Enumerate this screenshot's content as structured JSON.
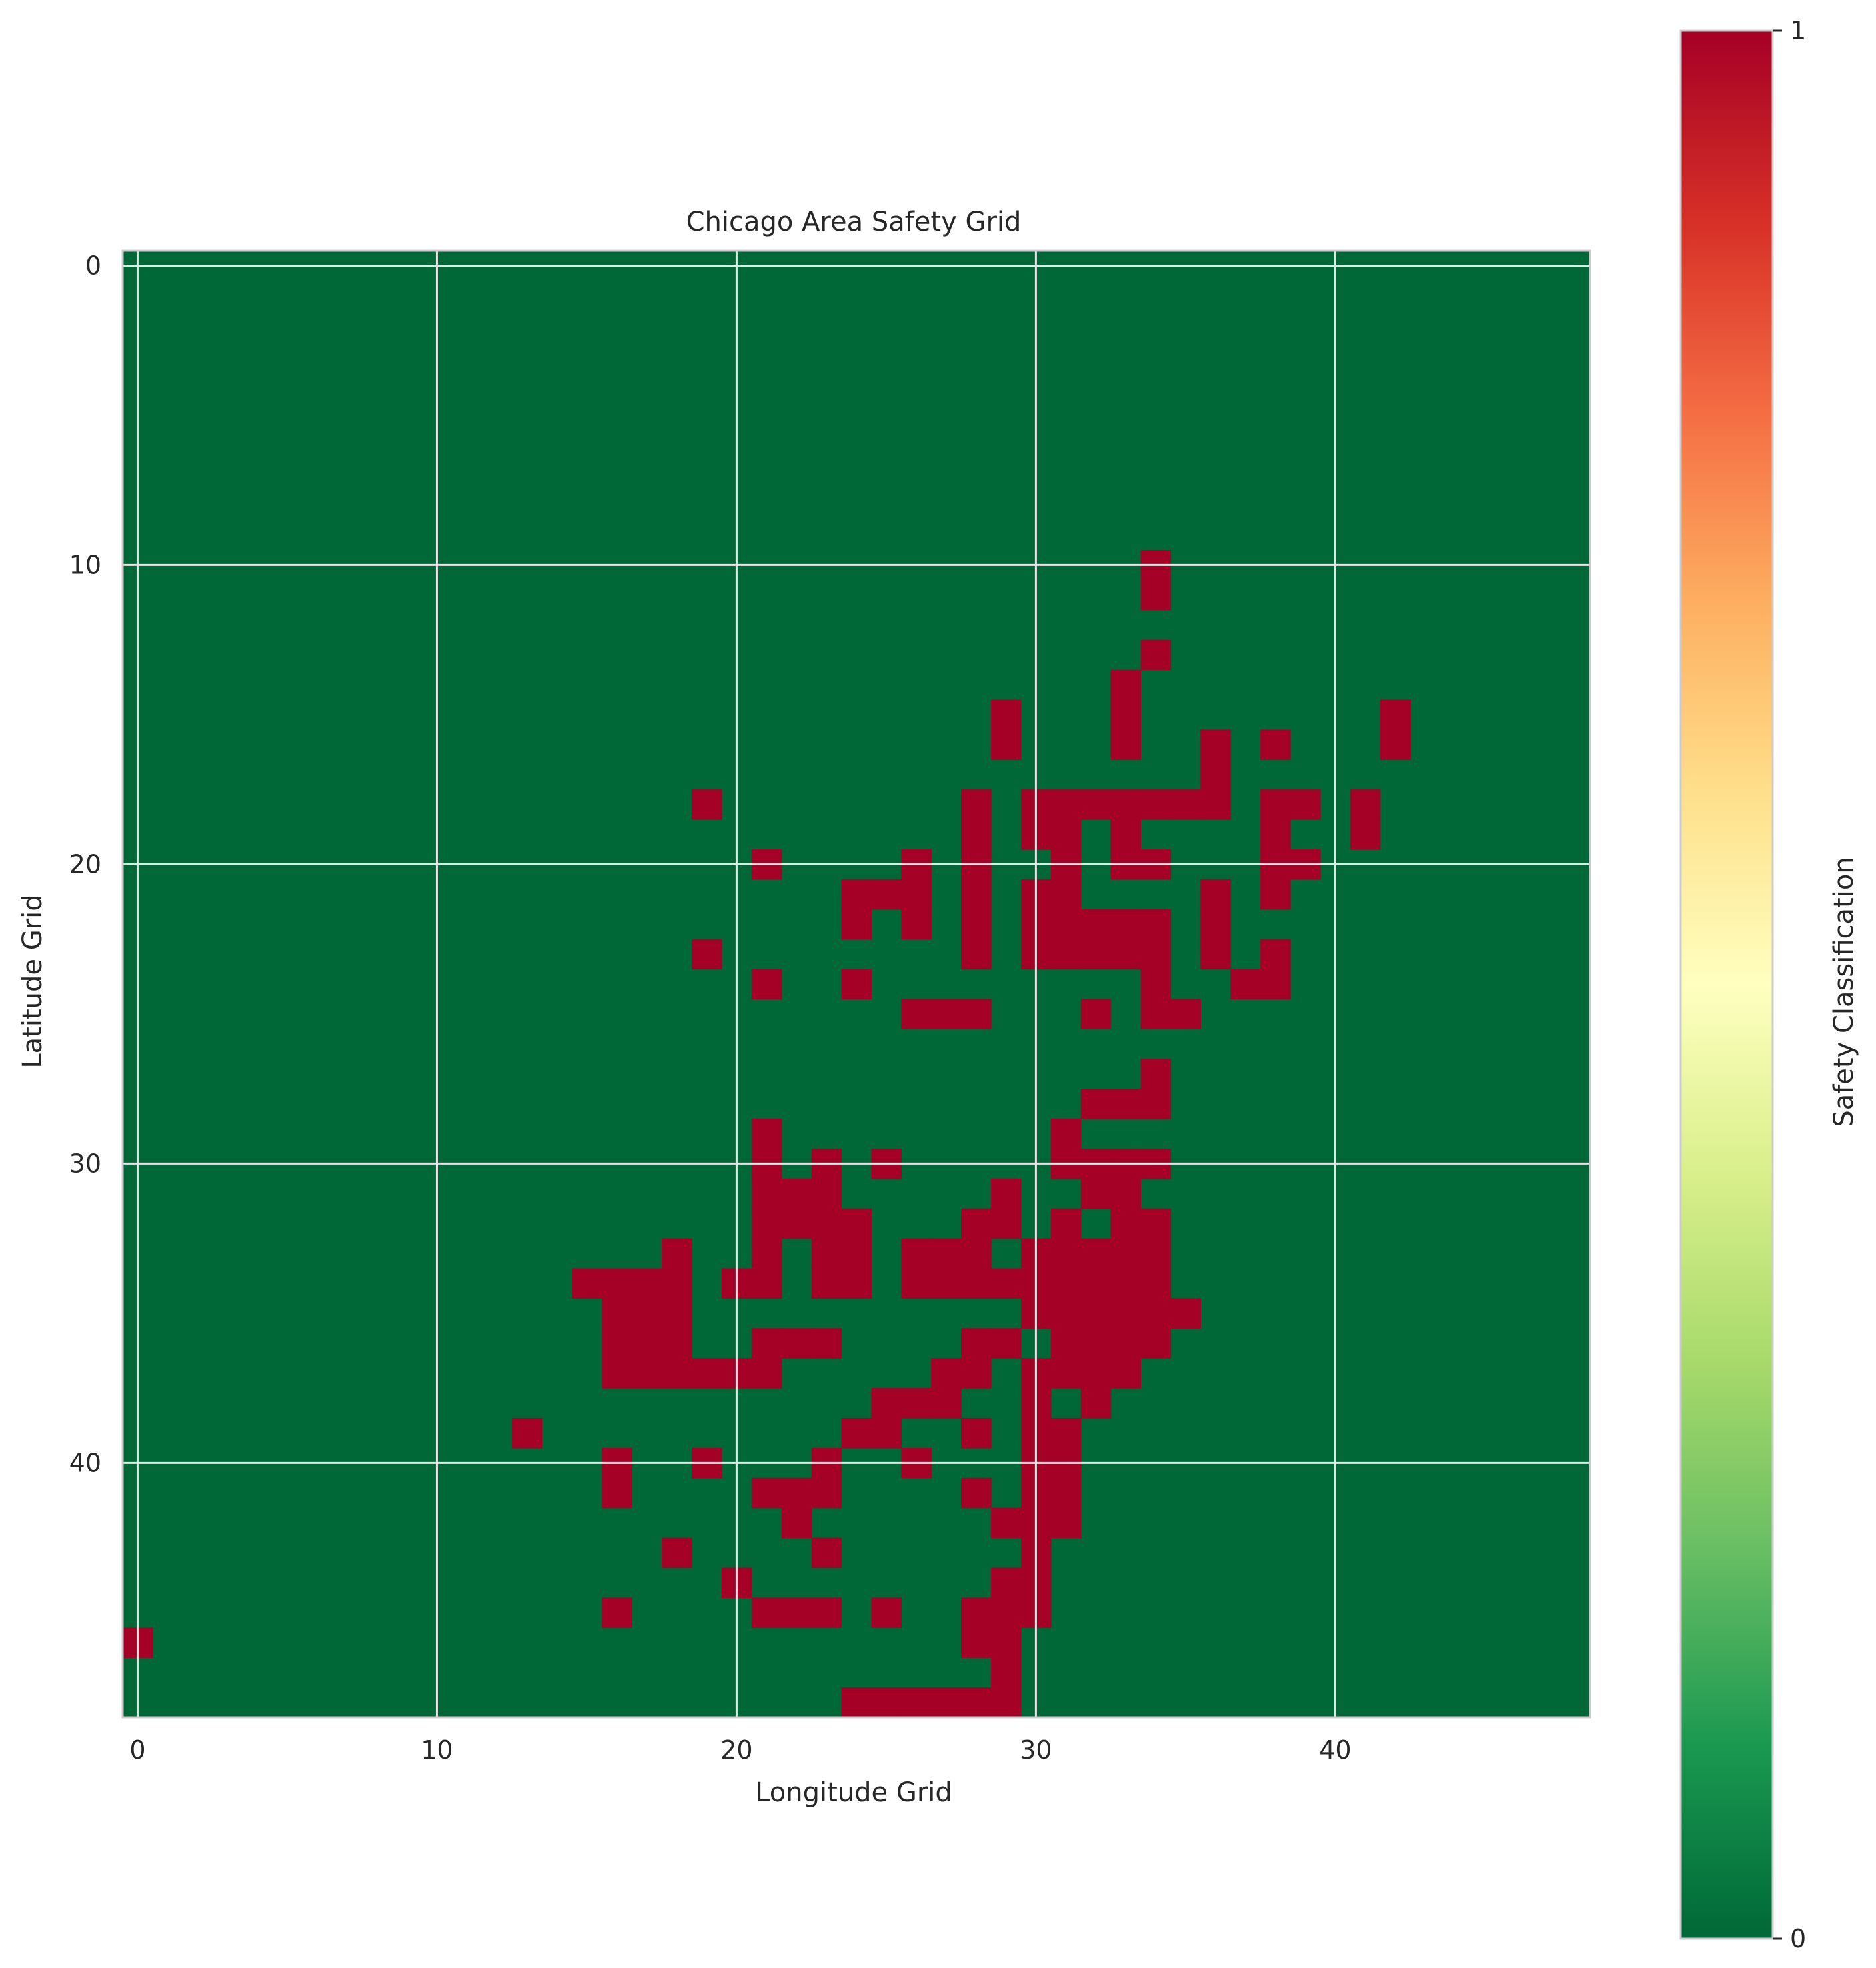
{
  "chart_data": {
    "type": "heatmap",
    "title": "Chicago Area Safety Grid",
    "xlabel": "Longitude Grid",
    "ylabel": "Latitude Grid",
    "grid": true,
    "xlim": [
      -0.5,
      48.5
    ],
    "ylim": [
      48.5,
      -0.5
    ],
    "rows": 49,
    "cols": 49,
    "xticks": [
      0,
      10,
      20,
      30,
      40
    ],
    "yticks": [
      0,
      10,
      20,
      30,
      40
    ],
    "colorbar": {
      "label": "Safety Classification",
      "ticks": [
        0,
        1
      ],
      "range": [
        0,
        1
      ],
      "colormap": "RdYlGn_r",
      "stops": [
        "#006837",
        "#1a9850",
        "#66bd63",
        "#a6d96a",
        "#d9ef8b",
        "#ffffbf",
        "#fee08b",
        "#fdae61",
        "#f46d43",
        "#d73027",
        "#a50026"
      ]
    },
    "colors": {
      "safe": "#006837",
      "unsafe": "#a50026"
    },
    "value_zero_default": 0,
    "cells_value_1": [
      [
        10,
        34
      ],
      [
        11,
        34
      ],
      [
        13,
        34
      ],
      [
        14,
        33
      ],
      [
        15,
        29
      ],
      [
        15,
        33
      ],
      [
        15,
        42
      ],
      [
        16,
        29
      ],
      [
        16,
        33
      ],
      [
        16,
        36
      ],
      [
        16,
        38
      ],
      [
        16,
        42
      ],
      [
        17,
        36
      ],
      [
        18,
        19
      ],
      [
        18,
        28
      ],
      [
        18,
        30
      ],
      [
        18,
        31
      ],
      [
        18,
        32
      ],
      [
        18,
        33
      ],
      [
        18,
        34
      ],
      [
        18,
        35
      ],
      [
        18,
        36
      ],
      [
        18,
        38
      ],
      [
        18,
        39
      ],
      [
        18,
        41
      ],
      [
        19,
        28
      ],
      [
        19,
        30
      ],
      [
        19,
        31
      ],
      [
        19,
        33
      ],
      [
        19,
        38
      ],
      [
        19,
        41
      ],
      [
        20,
        21
      ],
      [
        20,
        26
      ],
      [
        20,
        28
      ],
      [
        20,
        31
      ],
      [
        20,
        33
      ],
      [
        20,
        34
      ],
      [
        20,
        38
      ],
      [
        20,
        39
      ],
      [
        21,
        24
      ],
      [
        21,
        25
      ],
      [
        21,
        26
      ],
      [
        21,
        28
      ],
      [
        21,
        30
      ],
      [
        21,
        31
      ],
      [
        21,
        36
      ],
      [
        21,
        38
      ],
      [
        22,
        24
      ],
      [
        22,
        26
      ],
      [
        22,
        28
      ],
      [
        22,
        30
      ],
      [
        22,
        31
      ],
      [
        22,
        32
      ],
      [
        22,
        33
      ],
      [
        22,
        34
      ],
      [
        22,
        36
      ],
      [
        23,
        19
      ],
      [
        23,
        28
      ],
      [
        23,
        30
      ],
      [
        23,
        31
      ],
      [
        23,
        32
      ],
      [
        23,
        33
      ],
      [
        23,
        34
      ],
      [
        23,
        36
      ],
      [
        23,
        38
      ],
      [
        24,
        21
      ],
      [
        24,
        24
      ],
      [
        24,
        34
      ],
      [
        24,
        37
      ],
      [
        24,
        38
      ],
      [
        25,
        26
      ],
      [
        25,
        27
      ],
      [
        25,
        28
      ],
      [
        25,
        32
      ],
      [
        25,
        34
      ],
      [
        25,
        35
      ],
      [
        27,
        34
      ],
      [
        28,
        32
      ],
      [
        28,
        33
      ],
      [
        28,
        34
      ],
      [
        29,
        21
      ],
      [
        29,
        31
      ],
      [
        30,
        21
      ],
      [
        30,
        23
      ],
      [
        30,
        25
      ],
      [
        30,
        31
      ],
      [
        30,
        32
      ],
      [
        30,
        33
      ],
      [
        30,
        34
      ],
      [
        31,
        21
      ],
      [
        31,
        22
      ],
      [
        31,
        23
      ],
      [
        31,
        29
      ],
      [
        31,
        32
      ],
      [
        31,
        33
      ],
      [
        32,
        21
      ],
      [
        32,
        22
      ],
      [
        32,
        23
      ],
      [
        32,
        24
      ],
      [
        32,
        28
      ],
      [
        32,
        29
      ],
      [
        32,
        31
      ],
      [
        32,
        33
      ],
      [
        32,
        34
      ],
      [
        33,
        18
      ],
      [
        33,
        21
      ],
      [
        33,
        23
      ],
      [
        33,
        24
      ],
      [
        33,
        26
      ],
      [
        33,
        27
      ],
      [
        33,
        28
      ],
      [
        33,
        30
      ],
      [
        33,
        31
      ],
      [
        33,
        32
      ],
      [
        33,
        33
      ],
      [
        33,
        34
      ],
      [
        34,
        15
      ],
      [
        34,
        16
      ],
      [
        34,
        17
      ],
      [
        34,
        18
      ],
      [
        34,
        20
      ],
      [
        34,
        21
      ],
      [
        34,
        23
      ],
      [
        34,
        24
      ],
      [
        34,
        26
      ],
      [
        34,
        27
      ],
      [
        34,
        28
      ],
      [
        34,
        29
      ],
      [
        34,
        30
      ],
      [
        34,
        31
      ],
      [
        34,
        32
      ],
      [
        34,
        33
      ],
      [
        34,
        34
      ],
      [
        35,
        16
      ],
      [
        35,
        17
      ],
      [
        35,
        18
      ],
      [
        35,
        30
      ],
      [
        35,
        31
      ],
      [
        35,
        32
      ],
      [
        35,
        33
      ],
      [
        35,
        34
      ],
      [
        35,
        35
      ],
      [
        36,
        16
      ],
      [
        36,
        17
      ],
      [
        36,
        18
      ],
      [
        36,
        21
      ],
      [
        36,
        22
      ],
      [
        36,
        23
      ],
      [
        36,
        28
      ],
      [
        36,
        29
      ],
      [
        36,
        31
      ],
      [
        36,
        32
      ],
      [
        36,
        33
      ],
      [
        36,
        34
      ],
      [
        37,
        16
      ],
      [
        37,
        17
      ],
      [
        37,
        18
      ],
      [
        37,
        19
      ],
      [
        37,
        20
      ],
      [
        37,
        21
      ],
      [
        37,
        27
      ],
      [
        37,
        28
      ],
      [
        37,
        30
      ],
      [
        37,
        31
      ],
      [
        37,
        32
      ],
      [
        37,
        33
      ],
      [
        38,
        25
      ],
      [
        38,
        26
      ],
      [
        38,
        27
      ],
      [
        38,
        30
      ],
      [
        38,
        32
      ],
      [
        39,
        13
      ],
      [
        39,
        24
      ],
      [
        39,
        25
      ],
      [
        39,
        28
      ],
      [
        39,
        30
      ],
      [
        39,
        31
      ],
      [
        40,
        16
      ],
      [
        40,
        19
      ],
      [
        40,
        23
      ],
      [
        40,
        26
      ],
      [
        40,
        30
      ],
      [
        40,
        31
      ],
      [
        41,
        16
      ],
      [
        41,
        21
      ],
      [
        41,
        22
      ],
      [
        41,
        23
      ],
      [
        41,
        28
      ],
      [
        41,
        30
      ],
      [
        41,
        31
      ],
      [
        42,
        22
      ],
      [
        42,
        29
      ],
      [
        42,
        30
      ],
      [
        42,
        31
      ],
      [
        43,
        18
      ],
      [
        43,
        23
      ],
      [
        43,
        30
      ],
      [
        44,
        20
      ],
      [
        44,
        29
      ],
      [
        44,
        30
      ],
      [
        45,
        16
      ],
      [
        45,
        21
      ],
      [
        45,
        22
      ],
      [
        45,
        23
      ],
      [
        45,
        25
      ],
      [
        45,
        28
      ],
      [
        45,
        29
      ],
      [
        45,
        30
      ],
      [
        46,
        0
      ],
      [
        46,
        28
      ],
      [
        46,
        29
      ],
      [
        47,
        29
      ],
      [
        48,
        24
      ],
      [
        48,
        25
      ],
      [
        48,
        26
      ],
      [
        48,
        27
      ],
      [
        48,
        28
      ],
      [
        48,
        29
      ]
    ]
  }
}
